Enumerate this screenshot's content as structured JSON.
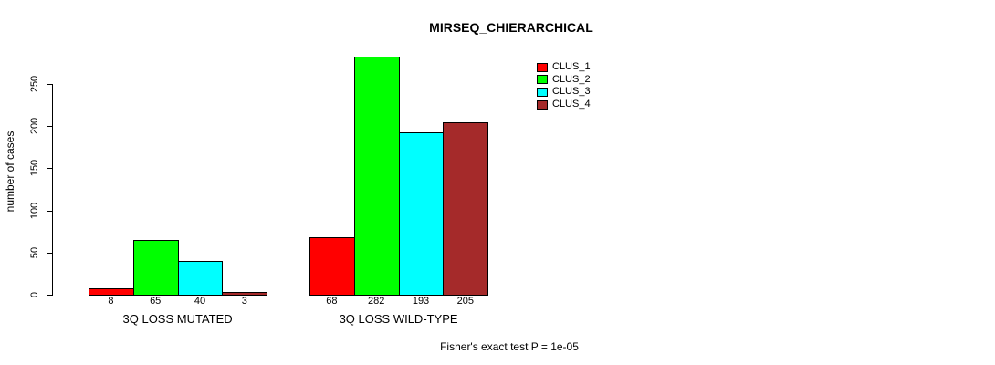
{
  "chart_data": {
    "type": "bar",
    "title": "MIRSEQ_CHIERARCHICAL",
    "ylabel": "number of cases",
    "xlabel": "",
    "ylim": [
      0,
      282
    ],
    "yticks": [
      0,
      50,
      100,
      150,
      200,
      250
    ],
    "grid": false,
    "legend_position": "top-right",
    "series_names": [
      "CLUS_1",
      "CLUS_2",
      "CLUS_3",
      "CLUS_4"
    ],
    "series_colors": [
      "#ff0000",
      "#00ff00",
      "#00ffff",
      "#a52a2a"
    ],
    "categories": [
      "3Q LOSS MUTATED",
      "3Q LOSS WILD-TYPE"
    ],
    "groups": [
      {
        "label": "3Q LOSS MUTATED",
        "values": [
          8,
          65,
          40,
          3
        ]
      },
      {
        "label": "3Q LOSS WILD-TYPE",
        "values": [
          68,
          282,
          193,
          205
        ]
      }
    ],
    "footnote": "Fisher's exact test P = 1e-05"
  }
}
